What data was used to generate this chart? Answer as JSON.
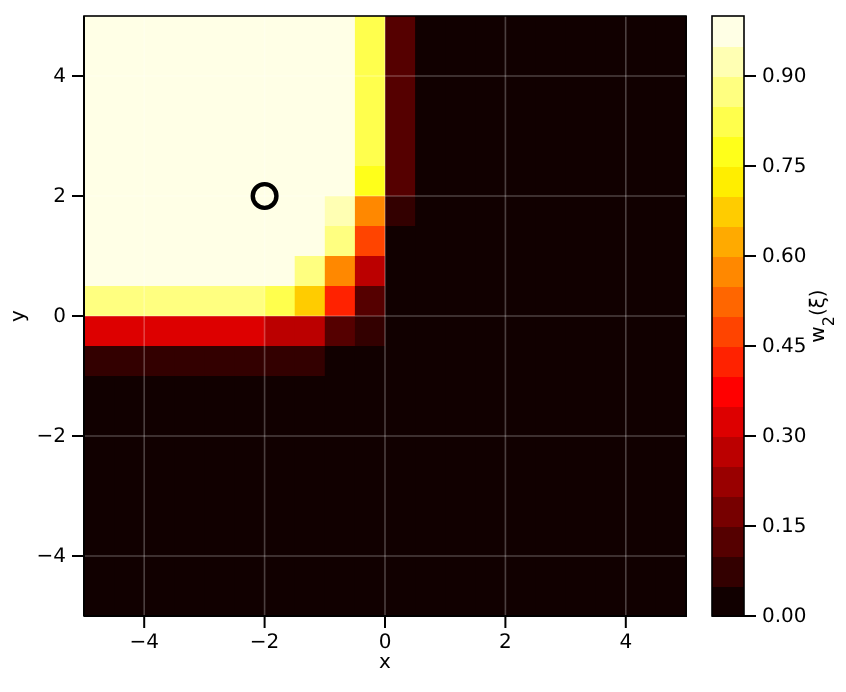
{
  "chart_data": {
    "type": "heatmap",
    "xlabel": "x",
    "ylabel": "y",
    "clabel": "w$_{2}$(ξ)",
    "x": [
      -4.75,
      -4.25,
      -3.75,
      -3.25,
      -2.75,
      -2.25,
      -1.75,
      -1.25,
      -0.75,
      -0.25,
      0.25,
      0.75,
      1.25,
      1.75,
      2.25,
      2.75,
      3.25,
      3.75,
      4.25,
      4.75
    ],
    "y": [
      4.75,
      4.25,
      3.75,
      3.25,
      2.75,
      2.25,
      1.75,
      1.25,
      0.75,
      0.25,
      -0.25,
      -0.75,
      -1.25,
      -1.75,
      -2.25,
      -2.75,
      -3.25,
      -3.75,
      -4.25,
      -4.75
    ],
    "xlim": [
      -5,
      5
    ],
    "ylim": [
      -5,
      5
    ],
    "xticks": [
      {
        "value": -4,
        "label": "−4"
      },
      {
        "value": -2,
        "label": "−2"
      },
      0,
      2,
      4
    ],
    "yticks": [
      {
        "value": -4,
        "label": "−4"
      },
      {
        "value": -2,
        "label": "−2"
      },
      0,
      2,
      4
    ],
    "clim": [
      0,
      1
    ],
    "cticks": [
      {
        "value": 0,
        "label": "0.00"
      },
      {
        "value": 0.15,
        "label": "0.15"
      },
      {
        "value": 0.3,
        "label": "0.30"
      },
      {
        "value": 0.45,
        "label": "0.45"
      },
      {
        "value": 0.6,
        "label": "0.60"
      },
      {
        "value": 0.75,
        "label": "0.75"
      },
      {
        "value": 0.9,
        "label": "0.90"
      }
    ],
    "grid": true,
    "cells": [
      [
        1,
        1,
        1,
        1,
        1,
        1,
        1,
        1,
        1,
        0.8,
        0.15,
        0,
        0,
        0,
        0,
        0,
        0,
        0,
        0,
        0
      ],
      [
        1,
        1,
        1,
        1,
        1,
        1,
        1,
        1,
        1,
        0.8,
        0.15,
        0,
        0,
        0,
        0,
        0,
        0,
        0,
        0,
        0
      ],
      [
        1,
        1,
        1,
        1,
        1,
        1,
        1,
        1,
        1,
        0.8,
        0.15,
        0,
        0,
        0,
        0,
        0,
        0,
        0,
        0,
        0
      ],
      [
        1,
        1,
        1,
        1,
        1,
        1,
        1,
        1,
        1,
        0.8,
        0.15,
        0,
        0,
        0,
        0,
        0,
        0,
        0,
        0,
        0
      ],
      [
        1,
        1,
        1,
        1,
        1,
        1,
        1,
        1,
        1,
        0.8,
        0.15,
        0,
        0,
        0,
        0,
        0,
        0,
        0,
        0,
        0
      ],
      [
        1,
        1,
        1,
        1,
        1,
        1,
        1,
        1,
        1,
        0.75,
        0.1,
        0,
        0,
        0,
        0,
        0,
        0,
        0,
        0,
        0
      ],
      [
        1,
        1,
        1,
        1,
        1,
        1,
        1,
        1,
        0.95,
        0.6,
        0.05,
        0,
        0,
        0,
        0,
        0,
        0,
        0,
        0,
        0
      ],
      [
        1,
        1,
        1,
        1,
        1,
        1,
        1,
        1,
        0.85,
        0.45,
        0,
        0,
        0,
        0,
        0,
        0,
        0,
        0,
        0,
        0
      ],
      [
        1,
        1,
        1,
        1,
        1,
        1,
        1,
        0.85,
        0.6,
        0.3,
        0,
        0,
        0,
        0,
        0,
        0,
        0,
        0,
        0,
        0
      ],
      [
        0.85,
        0.85,
        0.85,
        0.85,
        0.85,
        0.85,
        0.8,
        0.65,
        0.4,
        0.15,
        0,
        0,
        0,
        0,
        0,
        0,
        0,
        0,
        0,
        0
      ],
      [
        0.35,
        0.35,
        0.35,
        0.35,
        0.35,
        0.35,
        0.3,
        0.25,
        0.15,
        0.05,
        0,
        0,
        0,
        0,
        0,
        0,
        0,
        0,
        0,
        0
      ],
      [
        0.05,
        0.05,
        0.05,
        0.05,
        0.05,
        0.05,
        0.05,
        0.05,
        0.02,
        0,
        0,
        0,
        0,
        0,
        0,
        0,
        0,
        0,
        0,
        0
      ],
      [
        0,
        0,
        0,
        0,
        0,
        0,
        0,
        0,
        0,
        0,
        0,
        0,
        0,
        0,
        0,
        0,
        0,
        0,
        0,
        0
      ],
      [
        0,
        0,
        0,
        0,
        0,
        0,
        0,
        0,
        0,
        0,
        0,
        0,
        0,
        0,
        0,
        0,
        0,
        0,
        0,
        0
      ],
      [
        0,
        0,
        0,
        0,
        0,
        0,
        0,
        0,
        0,
        0,
        0,
        0,
        0,
        0,
        0,
        0,
        0,
        0,
        0,
        0
      ],
      [
        0,
        0,
        0,
        0,
        0,
        0,
        0,
        0,
        0,
        0,
        0,
        0,
        0,
        0,
        0,
        0,
        0,
        0,
        0,
        0
      ],
      [
        0,
        0,
        0,
        0,
        0,
        0,
        0,
        0,
        0,
        0,
        0,
        0,
        0,
        0,
        0,
        0,
        0,
        0,
        0,
        0
      ],
      [
        0,
        0,
        0,
        0,
        0,
        0,
        0,
        0,
        0,
        0,
        0,
        0,
        0,
        0,
        0,
        0,
        0,
        0,
        0,
        0
      ],
      [
        0,
        0,
        0,
        0,
        0,
        0,
        0,
        0,
        0,
        0,
        0,
        0,
        0,
        0,
        0,
        0,
        0,
        0,
        0,
        0
      ],
      [
        0,
        0,
        0,
        0,
        0,
        0,
        0,
        0,
        0,
        0,
        0,
        0,
        0,
        0,
        0,
        0,
        0,
        0,
        0,
        0
      ]
    ],
    "series": [
      {
        "type": "scatter",
        "x": [
          -2
        ],
        "values": [
          2
        ],
        "color": "#000000",
        "marker": "circle"
      }
    ]
  }
}
